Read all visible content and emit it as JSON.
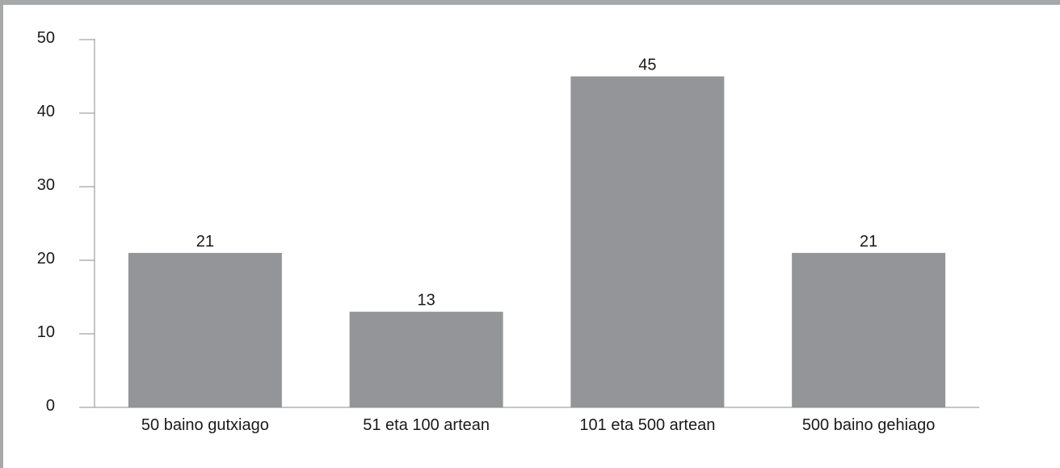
{
  "chart_data": {
    "type": "bar",
    "categories": [
      "50 baino gutxiago",
      "51 eta 100 artean",
      "101 eta 500 artean",
      "500 baino gehiago"
    ],
    "values": [
      21,
      13,
      45,
      21
    ],
    "data_labels": [
      "21",
      "13",
      "45",
      "21"
    ],
    "title": "",
    "xlabel": "",
    "ylabel": "",
    "ylim": [
      0,
      50
    ],
    "yticks": [
      0,
      10,
      20,
      30,
      40,
      50
    ],
    "grid": false,
    "legend": "none",
    "colors": {
      "bar": "#939598",
      "axis": "#8c8c8c",
      "text": "#1a1a1a",
      "frame": "#a7a8aa"
    }
  }
}
